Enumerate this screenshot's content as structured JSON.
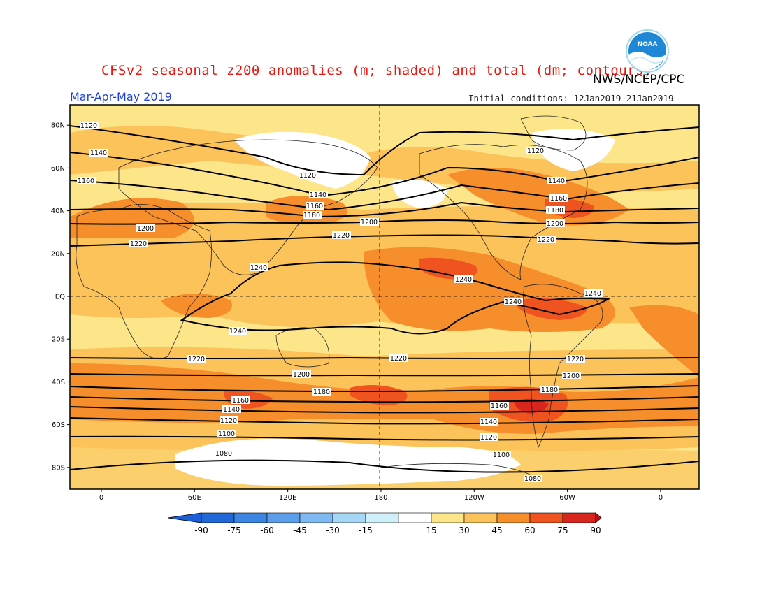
{
  "header": {
    "title": "CFSv2 seasonal z200 anomalies (m; shaded) and total (dm; contours)",
    "agency": "NWS/NCEP/CPC",
    "season": "Mar-Apr-May 2019",
    "initial_conditions": "Initial conditions: 12Jan2019-21Jan2019",
    "logo_text": "NOAA"
  },
  "map": {
    "lat_labels": [
      "80N",
      "60N",
      "40N",
      "20N",
      "EQ",
      "20S",
      "40S",
      "60S",
      "80S"
    ],
    "lon_labels": [
      "0",
      "60E",
      "120E",
      "180",
      "120W",
      "60W",
      "0"
    ],
    "colors": {
      "background": "#fde58a",
      "anom_15_30": "#fde58a",
      "anom_30_45": "#fbc35a",
      "anom_45_60": "#f68e2c",
      "anom_60_75": "#ef5420",
      "anom_75_90": "#d9261c",
      "anom_neutral": "#ffffff"
    },
    "contour_labels": {
      "c1120_nw": "1120",
      "c1140_w": "1140",
      "c1160_w": "1160",
      "c1200_w": "1200",
      "c1220_w": "1220",
      "c1240_io": "1240",
      "c1240_s": "1240",
      "c1120_pac": "1120",
      "c1140_pac": "1140",
      "c1160_pac": "1160",
      "c1180_pac": "1180",
      "c1200_pac": "1200",
      "c1220_pac": "1220",
      "c1120_na": "1120",
      "c1140_na": "1140",
      "c1160_na": "1160",
      "c1180_na": "1180",
      "c1200_na": "1200",
      "c1220_na": "1220",
      "c1240_cp": "1240",
      "c1240_sa": "1240",
      "c1240_br": "1240",
      "c1220_s1": "1220",
      "c1220_s2": "1220",
      "c1220_s3": "1220",
      "c1200_s1": "1200",
      "c1200_s2": "1200",
      "c1180_s1": "1180",
      "c1180_s2": "1180",
      "c1160_s1": "1160",
      "c1160_s2": "1160",
      "c1140_s1": "1140",
      "c1140_s2": "1140",
      "c1120_s1": "1120",
      "c1120_s2": "1120",
      "c1100_s1": "1100",
      "c1100_s2": "1100",
      "c1080_s1": "1080",
      "c1080_s2": "1080"
    }
  },
  "colorbar": {
    "labels": [
      "-90",
      "-75",
      "-60",
      "-45",
      "-30",
      "-15",
      "15",
      "30",
      "45",
      "60",
      "75",
      "90"
    ],
    "colors": [
      "#2068d8",
      "#3d85e3",
      "#5c9eec",
      "#7fb9f3",
      "#a7d7f6",
      "#cff0f8",
      "#ffffff",
      "#fde58a",
      "#fbc35a",
      "#f68e2c",
      "#ef5420",
      "#d9261c"
    ],
    "end_low": "#1e5fd6",
    "end_high": "#b3141a"
  }
}
